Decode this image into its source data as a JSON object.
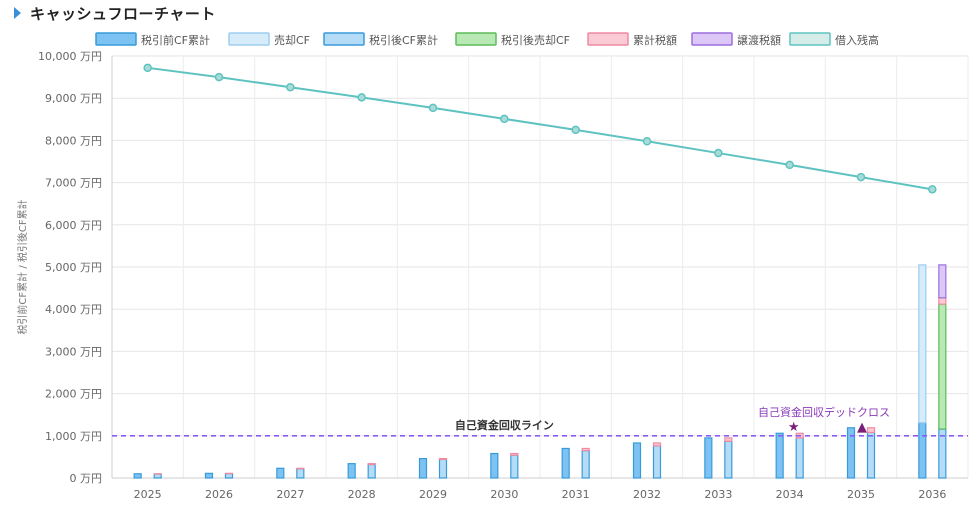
{
  "header": {
    "title": "キャッシュフローチャート"
  },
  "chart_data": {
    "type": "bar",
    "categories": [
      "2025",
      "2026",
      "2027",
      "2028",
      "2029",
      "2030",
      "2031",
      "2032",
      "2033",
      "2034",
      "2035",
      "2036"
    ],
    "ylabel": "税引前CF累計 / 税引後CF累計",
    "ylim": [
      0,
      10000
    ],
    "y_ticks": [
      "0 万円",
      "1,000 万円",
      "2,000 万円",
      "3,000 万円",
      "4,000 万円",
      "5,000 万円",
      "6,000 万円",
      "7,000 万円",
      "8,000 万円",
      "9,000 万円",
      "10,000 万円"
    ],
    "grid": true,
    "legend_position": "top",
    "series": [
      {
        "name": "税引前CF累計",
        "type": "bar",
        "stack": "a",
        "fill": "#7cc3f3",
        "stroke": "#3a9ad9",
        "values": [
          100,
          110,
          230,
          340,
          460,
          580,
          700,
          830,
          950,
          1060,
          1190,
          1310
        ]
      },
      {
        "name": "売却CF",
        "type": "bar",
        "stack": "a",
        "fill": "#d6ecfb",
        "stroke": "#9dcdf0",
        "values": [
          0,
          0,
          0,
          0,
          0,
          0,
          0,
          0,
          0,
          0,
          0,
          3740
        ]
      },
      {
        "name": "税引後CF累計",
        "type": "bar",
        "stack": "b",
        "fill": "#b5dcf7",
        "stroke": "#3a9ad9",
        "values": [
          95,
          105,
          220,
          320,
          440,
          540,
          650,
          760,
          870,
          950,
          1080,
          1160
        ]
      },
      {
        "name": "税引後売却CF",
        "type": "bar",
        "stack": "b",
        "fill": "#b8e8b4",
        "stroke": "#5dbb5a",
        "values": [
          0,
          0,
          0,
          0,
          0,
          0,
          0,
          0,
          0,
          0,
          0,
          2960
        ]
      },
      {
        "name": "累計税額",
        "type": "bar",
        "stack": "b",
        "fill": "#fbcbd5",
        "stroke": "#ef8aa0",
        "values": [
          5,
          5,
          10,
          20,
          20,
          40,
          50,
          70,
          80,
          110,
          110,
          150
        ]
      },
      {
        "name": "譲渡税額",
        "type": "bar",
        "stack": "b",
        "fill": "#dcc7f7",
        "stroke": "#9b6fe0",
        "values": [
          0,
          0,
          0,
          0,
          0,
          0,
          0,
          0,
          0,
          0,
          0,
          780
        ]
      },
      {
        "name": "借入残高",
        "type": "line",
        "fill": "#d6ece9",
        "stroke": "#5ec3c0",
        "values": [
          9720,
          9500,
          9260,
          9020,
          8770,
          8510,
          8250,
          7980,
          7700,
          7420,
          7130,
          6840
        ]
      }
    ],
    "annotations": {
      "recovery_line": {
        "value": 1000,
        "label": "自己資金回収ライン",
        "color": "#8b5cf6"
      },
      "recovery_marker": {
        "category": "2034",
        "symbol": "★",
        "color": "#7a1f7a"
      },
      "dead_cross_marker": {
        "category": "2035",
        "symbol": "▲",
        "color": "#7a1f7a",
        "label": "自己資金回収デッドクロス"
      }
    }
  }
}
